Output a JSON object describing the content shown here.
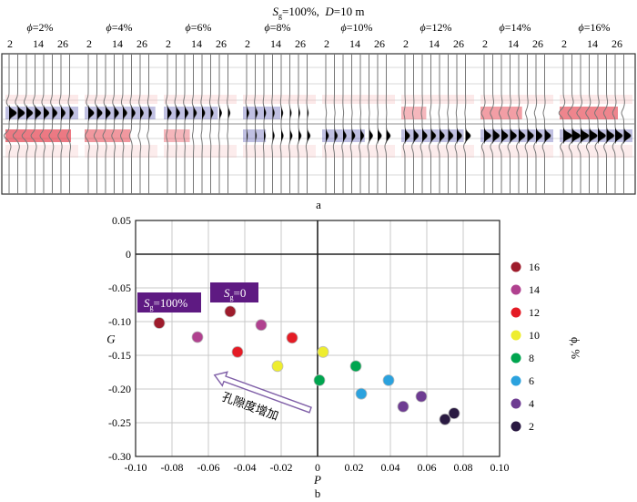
{
  "panel_a": {
    "title_s": "S",
    "title_sub": "g",
    "title_rest": "=100%,  ",
    "title_d": "D",
    "title_d_rest": "=10 m",
    "phi_symbol": "ϕ",
    "groups": [
      "=2%",
      "=4%",
      "=6%",
      "=8%",
      "=10%",
      "=12%",
      "=14%",
      "=16%"
    ],
    "trace_labels": [
      "2",
      "14",
      "26"
    ],
    "caption": "a"
  },
  "chart_data": {
    "type": "scatter",
    "title": "",
    "xlabel": "P",
    "ylabel": "G",
    "caption": "b",
    "xlim": [
      -0.1,
      0.1
    ],
    "ylim": [
      -0.3,
      0.05
    ],
    "xticks": [
      "-0.10",
      "-0.08",
      "-0.06",
      "-0.04",
      "-0.02",
      "0",
      "0.02",
      "0.04",
      "0.06",
      "0.08",
      "0.10"
    ],
    "yticks": [
      "0.05",
      "0",
      "-0.05",
      "-0.10",
      "-0.15",
      "-0.20",
      "-0.25",
      "-0.30"
    ],
    "xtick_values": [
      -0.1,
      -0.08,
      -0.06,
      -0.04,
      -0.02,
      0,
      0.02,
      0.04,
      0.06,
      0.08,
      0.1
    ],
    "ytick_values": [
      0.05,
      0,
      -0.05,
      -0.1,
      -0.15,
      -0.2,
      -0.25,
      -0.3
    ],
    "grid": true,
    "legend_title": "ϕ, %",
    "legend_position": "right",
    "series": [
      {
        "name": "16",
        "color": "#9e1c2c",
        "points": [
          [
            -0.087,
            -0.102
          ],
          [
            -0.048,
            -0.085
          ]
        ]
      },
      {
        "name": "14",
        "color": "#b0418f",
        "points": [
          [
            -0.066,
            -0.123
          ],
          [
            -0.031,
            -0.105
          ]
        ]
      },
      {
        "name": "12",
        "color": "#e41b25",
        "points": [
          [
            -0.044,
            -0.145
          ],
          [
            -0.014,
            -0.124
          ]
        ]
      },
      {
        "name": "10",
        "color": "#eeed2f",
        "points": [
          [
            -0.022,
            -0.166
          ],
          [
            0.003,
            -0.145
          ]
        ]
      },
      {
        "name": "8",
        "color": "#00a54f",
        "points": [
          [
            0.001,
            -0.187
          ],
          [
            0.021,
            -0.166
          ]
        ]
      },
      {
        "name": "6",
        "color": "#2ba2de",
        "points": [
          [
            0.024,
            -0.207
          ],
          [
            0.039,
            -0.187
          ]
        ]
      },
      {
        "name": "4",
        "color": "#6e3c92",
        "points": [
          [
            0.047,
            -0.226
          ],
          [
            0.057,
            -0.211
          ]
        ]
      },
      {
        "name": "2",
        "color": "#2a1a42",
        "points": [
          [
            0.07,
            -0.245
          ],
          [
            0.075,
            -0.236
          ]
        ]
      }
    ],
    "annotations": {
      "sg100_s": "S",
      "sg100_sub": "g",
      "sg100_rest": "=100%",
      "sg0_s": "S",
      "sg0_sub": "g",
      "sg0_rest": "=0",
      "box_color": "#5e1a82",
      "arrow_text": "孔隙度增加"
    }
  }
}
